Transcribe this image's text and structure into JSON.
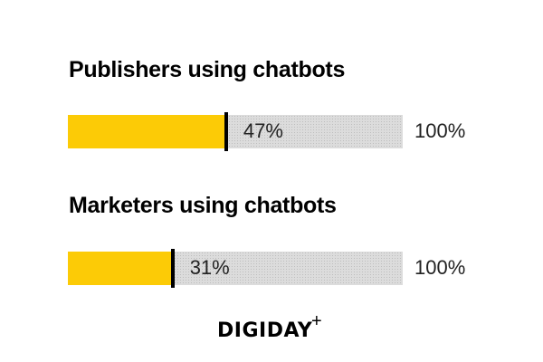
{
  "chart_data": {
    "type": "bar",
    "orientation": "horizontal",
    "xlim": [
      0,
      100
    ],
    "series": [
      {
        "title": "Publishers using chatbots",
        "value": 47,
        "value_label": "47%",
        "max_label": "100%"
      },
      {
        "title": "Marketers using chatbots",
        "value": 31,
        "value_label": "31%",
        "max_label": "100%"
      }
    ],
    "colors": {
      "fill": "#fccb06",
      "track": "#dcdcdc",
      "marker": "#000000"
    }
  },
  "brand": {
    "logo": "DIGIDAY",
    "logo_suffix": "+"
  }
}
